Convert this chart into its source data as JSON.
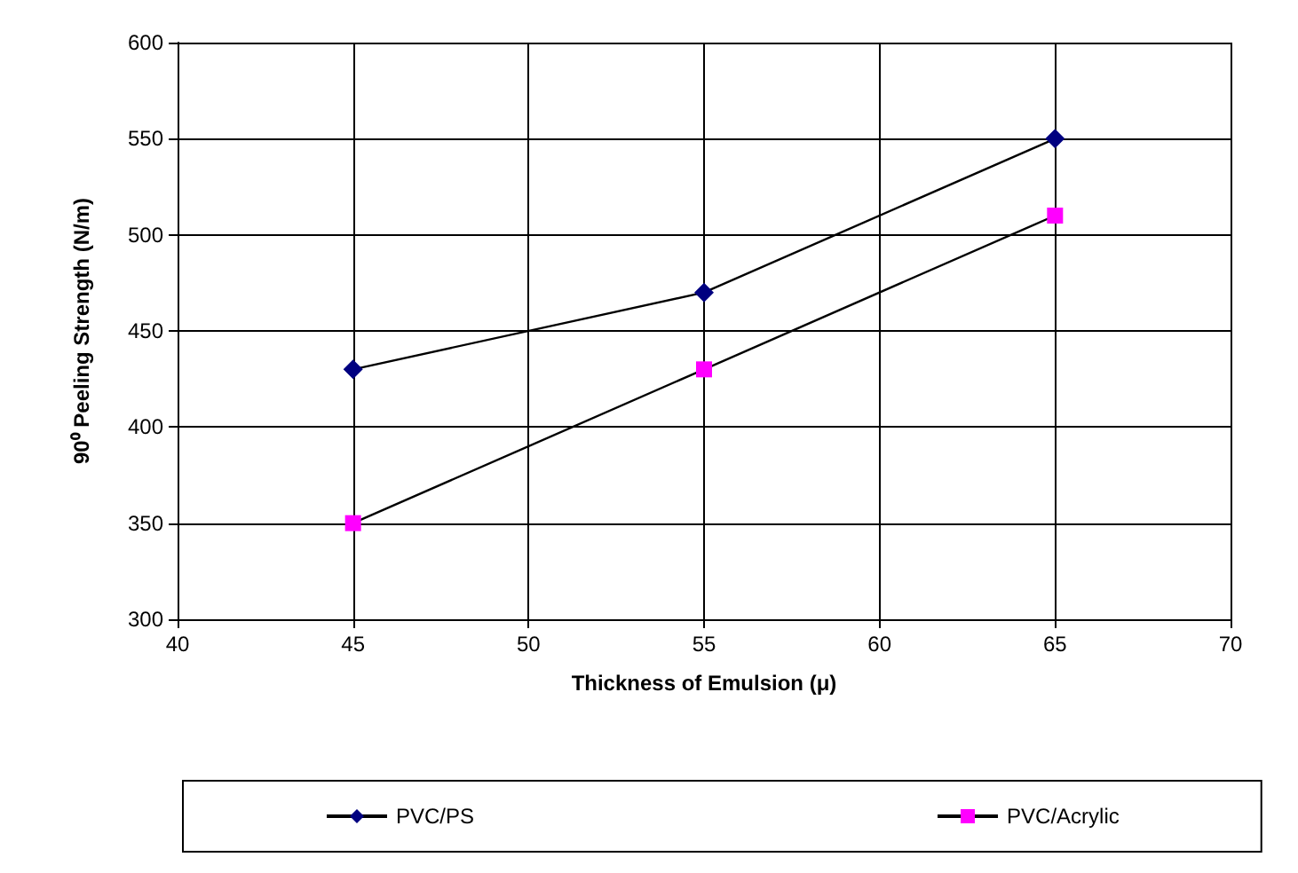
{
  "chart_data": {
    "type": "line",
    "xlabel": "Thickness of Emulsion (μ)",
    "ylabel": "90⁰ Peeling Strength (N/m)",
    "x": [
      45,
      55,
      65
    ],
    "series": [
      {
        "name": "PVC/PS",
        "color": "#000080",
        "marker": "diamond",
        "values": [
          430,
          470,
          550
        ]
      },
      {
        "name": "PVC/Acrylic",
        "color": "#ff00ff",
        "marker": "square",
        "values": [
          350,
          430,
          510
        ]
      }
    ],
    "xlim": [
      40,
      70
    ],
    "xticks": [
      40,
      45,
      50,
      55,
      60,
      65,
      70
    ],
    "ylim": [
      300,
      600
    ],
    "yticks": [
      300,
      350,
      400,
      450,
      500,
      550,
      600
    ],
    "grid": true,
    "legend": "bottom",
    "line_style": "solid"
  }
}
